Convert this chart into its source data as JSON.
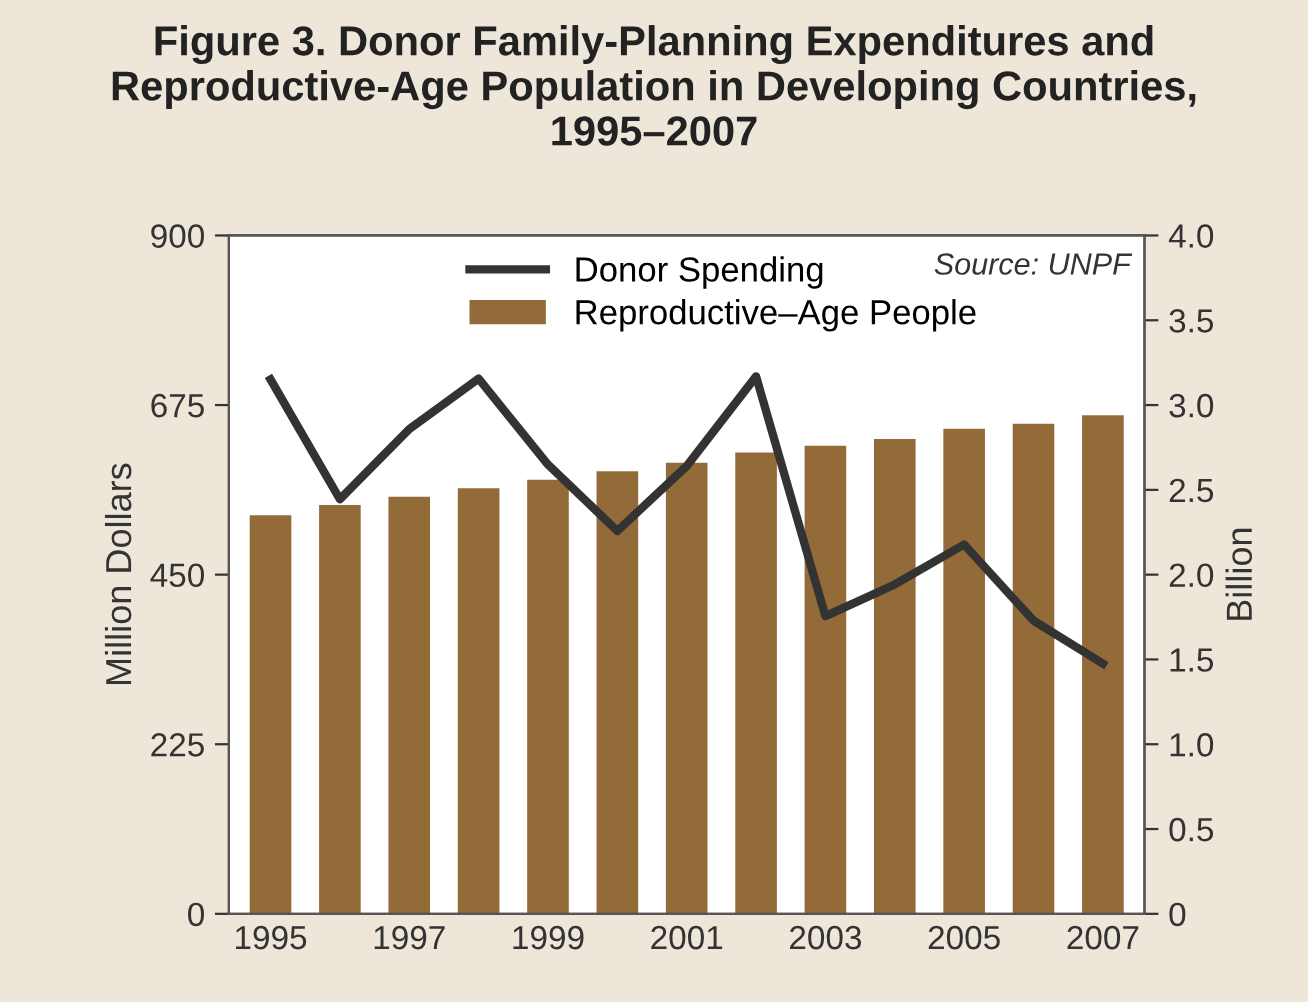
{
  "chart_data": {
    "type": "bar",
    "title": "Figure 3. Donor Family-Planning Expenditures and\nReproductive-Age Population in Developing Countries,\n1995–2007",
    "ylabel": "Million Dollars",
    "y2label": "Billion",
    "categories": [
      "1995",
      null,
      "1997",
      null,
      "1999",
      null,
      "2001",
      null,
      "2003",
      null,
      "2005",
      null,
      "2007"
    ],
    "series": [
      {
        "name": "Donor Spending",
        "type": "line",
        "color": "#333333",
        "values": [
          709,
          550,
          643,
          710,
          596,
          508,
          594,
          713,
          395,
          437,
          490,
          389,
          332
        ]
      },
      {
        "name": "Reproductive–Age People",
        "axis": "y2",
        "color": "#936b38",
        "values": [
          2.35,
          2.41,
          2.46,
          2.51,
          2.56,
          2.61,
          2.66,
          2.72,
          2.76,
          2.8,
          2.86,
          2.89,
          2.94
        ]
      }
    ],
    "ylim": [
      0,
      900
    ],
    "yticks": [
      0,
      225,
      450,
      675,
      900
    ],
    "y2lim": [
      0,
      4.0
    ],
    "y2ticks": [
      0,
      0.5,
      {
        "value": 1,
        "label": "1.0"
      },
      1.5,
      {
        "value": 2,
        "label": "2.0"
      },
      2.5,
      {
        "value": 3,
        "label": "3.0"
      },
      3.5,
      {
        "value": 4,
        "label": "4.0"
      }
    ],
    "legend": "top left",
    "grid": false,
    "marker": "none",
    "line_style": "solid",
    "annotations": [
      "Source: UNPF"
    ]
  }
}
